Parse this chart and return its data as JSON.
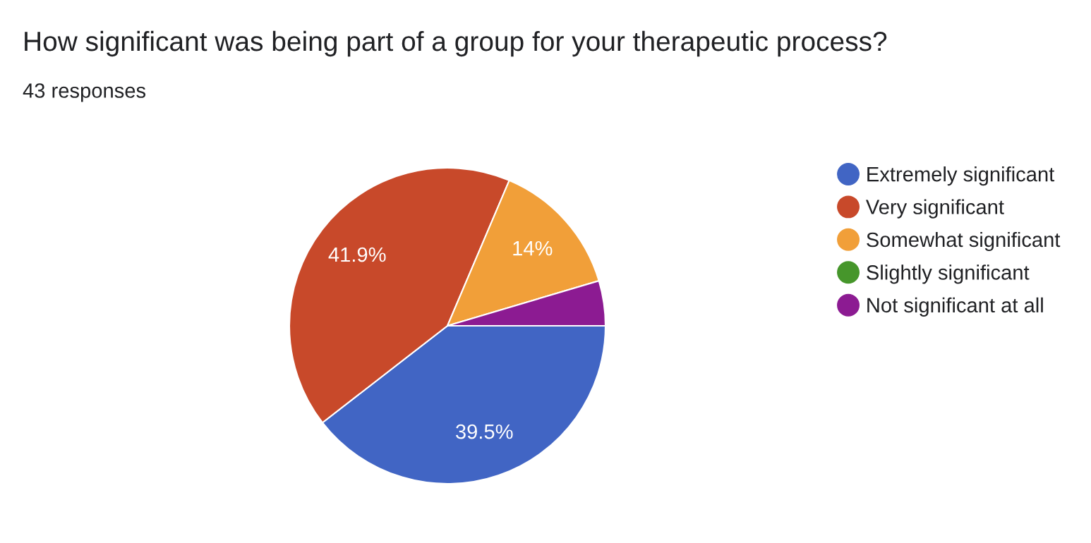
{
  "chart_data": {
    "type": "pie",
    "title": "How significant was being part of a group for your therapeutic process?",
    "subtitle": "43 responses",
    "categories": [
      "Extremely significant",
      "Very significant",
      "Somewhat significant",
      "Slightly significant",
      "Not significant at all"
    ],
    "values": [
      39.5,
      41.9,
      14,
      0,
      4.6
    ],
    "colors": [
      "#4165c4",
      "#c8492a",
      "#f19f39",
      "#46962b",
      "#8c1b92"
    ],
    "value_labels": [
      "39.5%",
      "41.9%",
      "14%",
      null,
      null
    ],
    "legend": "right"
  }
}
